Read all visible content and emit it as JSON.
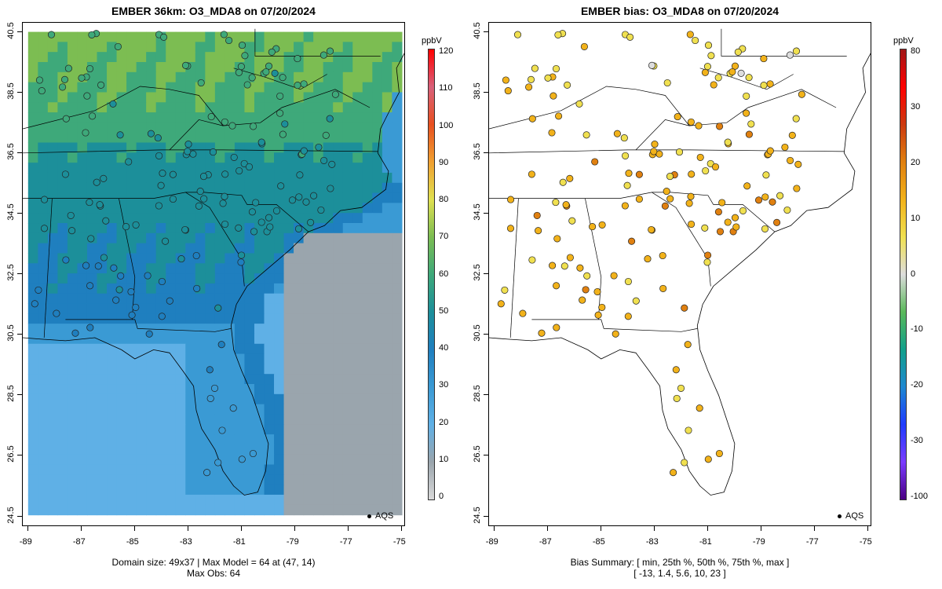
{
  "left_panel": {
    "title": "EMBER 36km: O3_MDA8 on 07/20/2024",
    "legend_label": "AQS",
    "caption_line1": "Domain size: 49x37 | Max Model = 64 at (47, 14)",
    "caption_line2": "Max Obs: 64",
    "colorbar_unit": "ppbV",
    "colorbar_ticks": [
      "120",
      "110",
      "100",
      "90",
      "80",
      "70",
      "60",
      "50",
      "40",
      "30",
      "20",
      "10",
      "0"
    ]
  },
  "right_panel": {
    "title": "EMBER bias: O3_MDA8 on 07/20/2024",
    "legend_label": "AQS",
    "caption_line1": "Bias Summary: [ min, 25th %, 50th %, 75th %, max ]",
    "caption_line2": "[ -13,   1.4,   5.6,   10,   23 ]",
    "colorbar_unit": "ppbV",
    "colorbar_ticks": [
      "80",
      "30",
      "20",
      "10",
      "0",
      "-10",
      "-20",
      "-30",
      "-100"
    ]
  },
  "axes": {
    "x_ticks": [
      "-89",
      "-87",
      "-85",
      "-83",
      "-81",
      "-79",
      "-77",
      "-75"
    ],
    "y_ticks": [
      "40.5",
      "38.5",
      "36.5",
      "34.5",
      "32.5",
      "30.5",
      "28.5",
      "26.5",
      "24.5"
    ]
  },
  "colors": {
    "model_scale": [
      "#d9d9d9",
      "#9aa5ad",
      "#5fb0e6",
      "#3a9ad4",
      "#1f7fbf",
      "#1c8f9a",
      "#3ea97a",
      "#7cbd52",
      "#e0e050",
      "#f0a030",
      "#e85020",
      "#d8607a",
      "#ff0000"
    ],
    "bias_scale": [
      "#4b0082",
      "#7a3cff",
      "#1f3cff",
      "#1e88d0",
      "#11a08a",
      "#5ab85a",
      "#dddddd",
      "#f0e050",
      "#f2b21a",
      "#e08010",
      "#cc3a10",
      "#ff0000",
      "#a01818"
    ],
    "ocean": "#8fa9b8"
  }
}
